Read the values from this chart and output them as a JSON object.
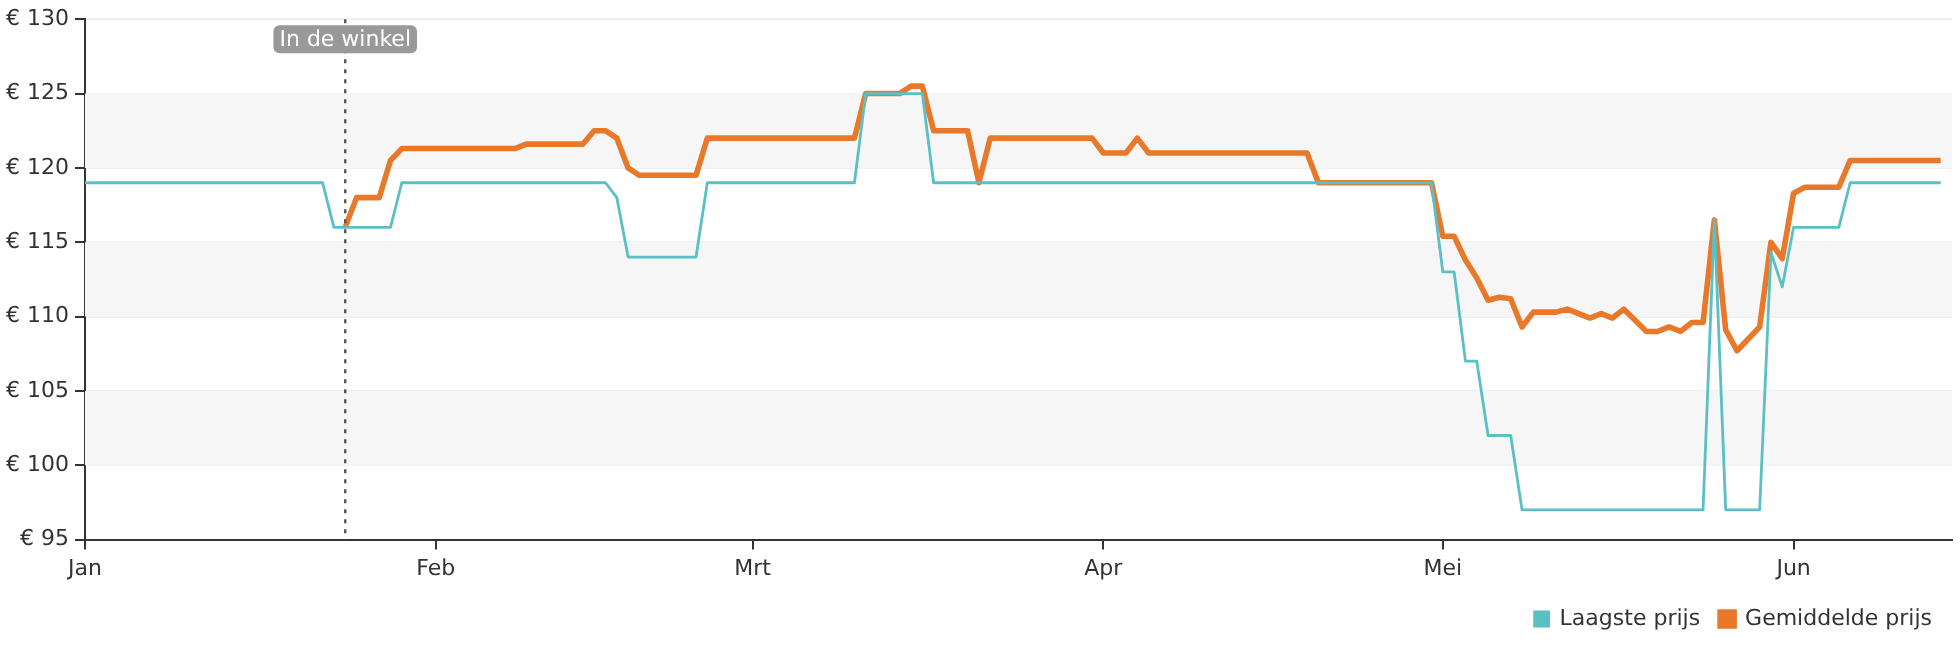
{
  "chart_data": {
    "type": "line",
    "legend": "bottom right",
    "grid": "y",
    "marker": "none",
    "line_style": "solid",
    "xlim": [
      "--01-01",
      "--06-15"
    ],
    "xticks": [
      {
        "value": "--01-01",
        "label": "Jan"
      },
      {
        "value": "--02-01",
        "label": "Feb"
      },
      {
        "value": "--03-01",
        "label": "Mrt"
      },
      {
        "value": "--04-01",
        "label": "Apr"
      },
      {
        "value": "--05-01",
        "label": "Mei"
      },
      {
        "value": "--06-01",
        "label": "Jun"
      }
    ],
    "ylim": [
      95,
      130
    ],
    "yticks": [
      {
        "value": 95,
        "label": "€ 95"
      },
      {
        "value": 100,
        "label": "€ 100"
      },
      {
        "value": 105,
        "label": "€ 105"
      },
      {
        "value": 110,
        "label": "€ 110"
      },
      {
        "value": 115,
        "label": "€ 115"
      },
      {
        "value": 120,
        "label": "€ 120"
      },
      {
        "value": 125,
        "label": "€ 125"
      },
      {
        "value": 130,
        "label": "€ 130"
      }
    ],
    "ref_lines": [
      {
        "axis": "x",
        "value": "--01-24",
        "label": "In de winkel",
        "color": "#555555",
        "line_style": "dotted"
      }
    ],
    "series": [
      {
        "name": "Gemiddelde prijs",
        "color": "#e8792b",
        "x": [
          "--01-24",
          "--01-25",
          "--01-27",
          "--01-28",
          "--01-29",
          "--02-08",
          "--02-09",
          "--02-14",
          "--02-15",
          "--02-16",
          "--02-17",
          "--02-18",
          "--02-19",
          "--02-24",
          "--02-25",
          "--03-10",
          "--03-11",
          "--03-14",
          "--03-15",
          "--03-16",
          "--03-17",
          "--03-20",
          "--03-21",
          "--03-22",
          "--03-31",
          "--04-01",
          "--04-03",
          "--04-04",
          "--04-05",
          "--04-19",
          "--04-20",
          "--04-30",
          "--05-01",
          "--05-02",
          "--05-03",
          "--05-04",
          "--05-05",
          "--05-06",
          "--05-07",
          "--05-08",
          "--05-09",
          "--05-11",
          "--05-12",
          "--05-14",
          "--05-15",
          "--05-16",
          "--05-17",
          "--05-19",
          "--05-20",
          "--05-21",
          "--05-22",
          "--05-23",
          "--05-24",
          "--05-25",
          "--05-26",
          "--05-27",
          "--05-29",
          "--05-30",
          "--05-31",
          "--06-01",
          "--06-02",
          "--06-05",
          "--06-06",
          "--06-14"
        ],
        "values": [
          116,
          118,
          118,
          120.5,
          121.3,
          121.3,
          121.6,
          121.6,
          122.5,
          122.5,
          122,
          120,
          119.5,
          119.5,
          122,
          122,
          125,
          125,
          125.5,
          125.5,
          122.5,
          122.5,
          119,
          122,
          122,
          121,
          121,
          122,
          121,
          121,
          119,
          119,
          115.4,
          115.4,
          113.8,
          112.6,
          111.1,
          111.3,
          111.2,
          109.3,
          110.3,
          110.3,
          110.5,
          109.9,
          110.2,
          109.9,
          110.5,
          109,
          109,
          109.3,
          109,
          109.6,
          109.6,
          116.5,
          109.1,
          107.7,
          109.3,
          115,
          113.9,
          118.3,
          118.7,
          118.7,
          120.5,
          120.5
        ]
      },
      {
        "name": "Laagste prijs",
        "color": "#5bbfc6",
        "x": [
          "--01-01",
          "--01-22",
          "--01-23",
          "--01-28",
          "--01-29",
          "--02-16",
          "--02-17",
          "--02-18",
          "--02-24",
          "--02-25",
          "--03-10",
          "--03-11",
          "--03-16",
          "--03-17",
          "--04-30",
          "--05-01",
          "--05-02",
          "--05-03",
          "--05-04",
          "--05-05",
          "--05-07",
          "--05-08",
          "--05-24",
          "--05-25",
          "--05-26",
          "--05-29",
          "--05-30",
          "--05-31",
          "--06-01",
          "--06-05",
          "--06-06",
          "--06-14"
        ],
        "values": [
          119,
          119,
          116,
          116,
          119,
          119,
          118,
          114,
          114,
          119,
          119,
          125,
          125,
          119,
          119,
          113,
          113,
          107,
          107,
          102,
          102,
          97,
          97,
          116.5,
          97,
          97,
          114.3,
          112,
          116,
          116,
          119,
          119
        ]
      }
    ]
  }
}
